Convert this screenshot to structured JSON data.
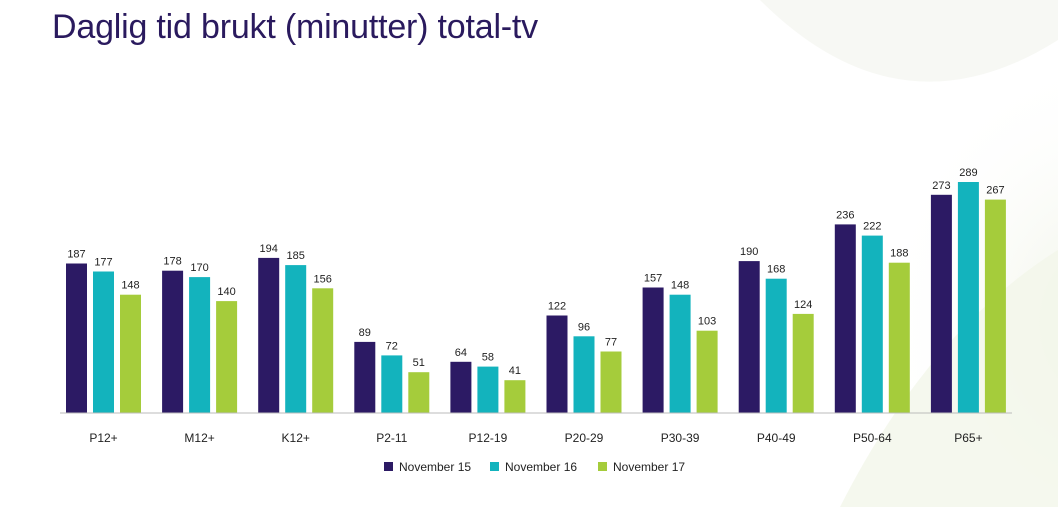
{
  "page": {
    "title": "Daglig tid brukt (minutter) total-tv"
  },
  "colors": {
    "title": "#2a1a5e",
    "axis": "#bbbbbb",
    "text": "#222222"
  },
  "chart_data": {
    "type": "bar",
    "title": "Daglig tid brukt (minutter) total-tv",
    "xlabel": "",
    "ylabel": "",
    "ylim": [
      0,
      289
    ],
    "grid": false,
    "legend_position": "bottom-center",
    "categories": [
      "P12+",
      "M12+",
      "K12+",
      "P2-11",
      "P12-19",
      "P20-29",
      "P30-39",
      "P40-49",
      "P50-64",
      "P65+"
    ],
    "series": [
      {
        "name": "November 15",
        "color": "#2c1a64",
        "values": [
          187,
          178,
          194,
          89,
          64,
          122,
          157,
          190,
          236,
          273
        ]
      },
      {
        "name": "November 16",
        "color": "#13b3bd",
        "values": [
          177,
          170,
          185,
          72,
          58,
          96,
          148,
          168,
          222,
          289
        ]
      },
      {
        "name": "November 17",
        "color": "#a5cc3b",
        "values": [
          148,
          140,
          156,
          51,
          41,
          77,
          103,
          124,
          188,
          267
        ]
      }
    ]
  }
}
